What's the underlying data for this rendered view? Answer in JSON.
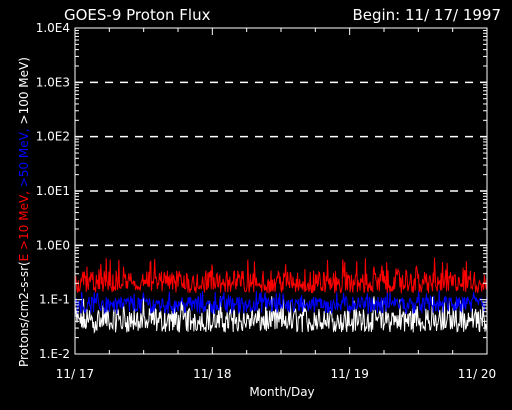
{
  "chart_data": {
    "type": "line",
    "title_left": "GOES-9 Proton Flux",
    "title_right": "Begin: 11/ 17/ 1997",
    "xlabel": "Month/Day",
    "ylabel_parts": [
      {
        "text": "Protons/cm2-s-sr(",
        "color": "#ffffff"
      },
      {
        "text": "E >10 MeV, ",
        "color": "#ff0000"
      },
      {
        "text": ">50 MeV, ",
        "color": "#0000ff"
      },
      {
        "text": ">100 MeV)",
        "color": "#ffffff"
      }
    ],
    "yscale": "log",
    "ylim": [
      0.01,
      10000
    ],
    "y_ticks": [
      {
        "value": 0.01,
        "label": "1.E-2"
      },
      {
        "value": 0.1,
        "label": "1.E-1"
      },
      {
        "value": 1,
        "label": "1.0E0"
      },
      {
        "value": 10,
        "label": "1.0E1"
      },
      {
        "value": 100,
        "label": "1.0E2"
      },
      {
        "value": 1000,
        "label": "1.0E3"
      },
      {
        "value": 10000,
        "label": "1.0E4"
      }
    ],
    "x_range_days": [
      0,
      3
    ],
    "x_ticks": [
      {
        "value": 0,
        "label": "11/ 17"
      },
      {
        "value": 1,
        "label": "11/ 18"
      },
      {
        "value": 2,
        "label": "11/ 19"
      },
      {
        "value": 3,
        "label": "11/ 20"
      }
    ],
    "threshold_lines": [
      1,
      10,
      100,
      1000
    ],
    "series": [
      {
        "name": "E >10 MeV",
        "color": "#ff0000",
        "base": 0.2,
        "low": 0.13,
        "high": 0.6
      },
      {
        "name": ">50 MeV",
        "color": "#0000ff",
        "base": 0.085,
        "low": 0.055,
        "high": 0.15
      },
      {
        "name": ">100 MeV",
        "color": "#ffffff",
        "base": 0.04,
        "low": 0.025,
        "high": 0.12
      }
    ]
  }
}
